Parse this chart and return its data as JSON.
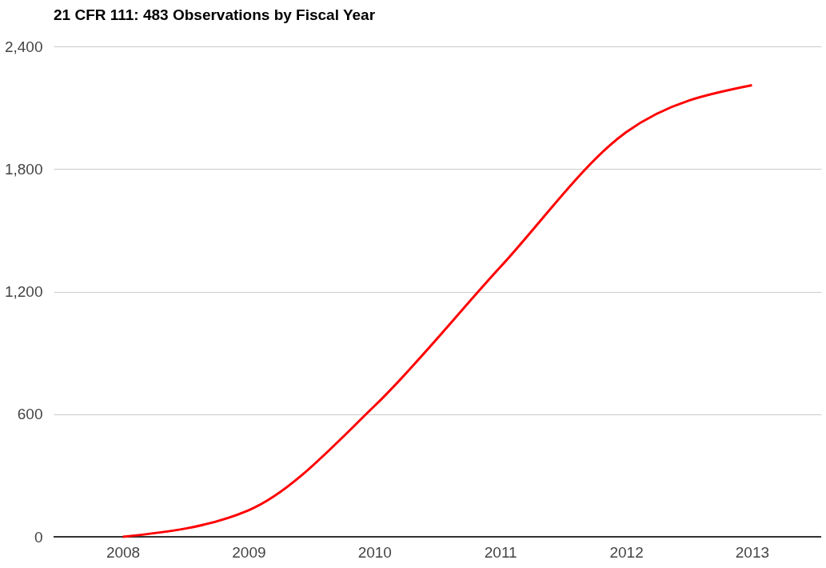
{
  "chart_data": {
    "type": "line",
    "title": "21 CFR 111: 483 Observations by Fiscal Year",
    "categories": [
      "2008",
      "2009",
      "2010",
      "2011",
      "2012",
      "2013"
    ],
    "series": [
      {
        "color": "#ff0000",
        "values": [
          0,
          130,
          640,
          1320,
          1980,
          2210
        ]
      }
    ],
    "ylim": [
      0,
      2400
    ],
    "yticks": [
      {
        "value": 0,
        "label": "0"
      },
      {
        "value": 600,
        "label": "600"
      },
      {
        "value": 1200,
        "label": "1,200"
      },
      {
        "value": 1800,
        "label": "1,800"
      },
      {
        "value": 2400,
        "label": "2,400"
      }
    ],
    "grid": "y",
    "marker": "none",
    "line_style": "solid"
  }
}
